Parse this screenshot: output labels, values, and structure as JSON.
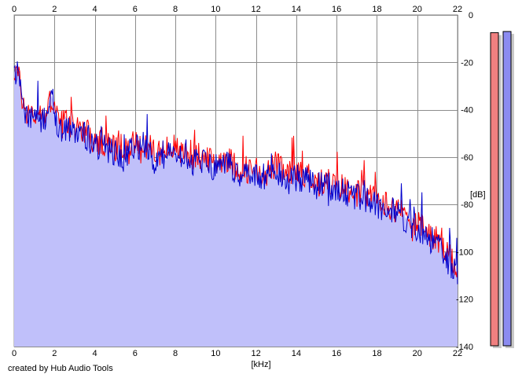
{
  "app": {
    "credit": "created by Hub Audio Tools"
  },
  "colors": {
    "background": "#ffffff",
    "plot_background": "#ffffff",
    "grid_major": "#8c8c8c",
    "grid_minor": "#c8c8c8",
    "left_channel": "#ff0000",
    "right_channel": "#0000cc",
    "fill": "#c0c0fa",
    "meter_left": "#f08080",
    "meter_right": "#8c8cf0"
  },
  "chart_data": {
    "type": "area",
    "title": "",
    "xlabel": "[kHz]",
    "ylabel": "[dB]",
    "xlim": [
      0,
      22
    ],
    "ylim": [
      -140,
      0
    ],
    "x_ticks": [
      "0",
      "2",
      "4",
      "6",
      "8",
      "10",
      "12",
      "14",
      "16",
      "18",
      "20",
      "22"
    ],
    "y_ticks": [
      "0",
      "-20",
      "-40",
      "-60",
      "-80",
      "-100",
      "-120",
      "-140"
    ],
    "grid": true,
    "legend": "none",
    "x": [
      0,
      0.1,
      0.3,
      0.5,
      1,
      1.5,
      1.9,
      2.2,
      2.5,
      3,
      3.5,
      4,
      4.5,
      5,
      5.5,
      6,
      6.5,
      7,
      7.5,
      8,
      8.5,
      9,
      9.5,
      10,
      10.5,
      11,
      11.5,
      12,
      12.5,
      13,
      13.5,
      14,
      14.5,
      15,
      15.5,
      16,
      16.5,
      17,
      17.5,
      18,
      18.5,
      19,
      19.5,
      20,
      20.5,
      21,
      21.5,
      22
    ],
    "series": [
      {
        "values": [
          -24,
          -22,
          -30,
          -40,
          -42,
          -44,
          -34,
          -46,
          -45,
          -47,
          -48,
          -55,
          -54,
          -56,
          -58,
          -53,
          -55,
          -58,
          -57,
          -56,
          -58,
          -59,
          -61,
          -62,
          -60,
          -64,
          -65,
          -66,
          -67,
          -63,
          -68,
          -66,
          -67,
          -70,
          -70,
          -72,
          -73,
          -75,
          -76,
          -78,
          -80,
          -82,
          -85,
          -88,
          -92,
          -95,
          -102,
          -106
        ]
      },
      {
        "values": [
          -25,
          -23,
          -32,
          -42,
          -43,
          -45,
          -36,
          -48,
          -47,
          -48,
          -50,
          -56,
          -56,
          -58,
          -60,
          -56,
          -58,
          -60,
          -60,
          -58,
          -61,
          -62,
          -63,
          -64,
          -63,
          -66,
          -67,
          -68,
          -69,
          -67,
          -70,
          -69,
          -70,
          -72,
          -72,
          -74,
          -75,
          -77,
          -78,
          -80,
          -82,
          -84,
          -87,
          -90,
          -94,
          -97,
          -104,
          -108
        ]
      }
    ],
    "level_meters": [
      {
        "values": [
          -7.5
        ]
      },
      {
        "values": [
          -7
        ]
      }
    ]
  }
}
